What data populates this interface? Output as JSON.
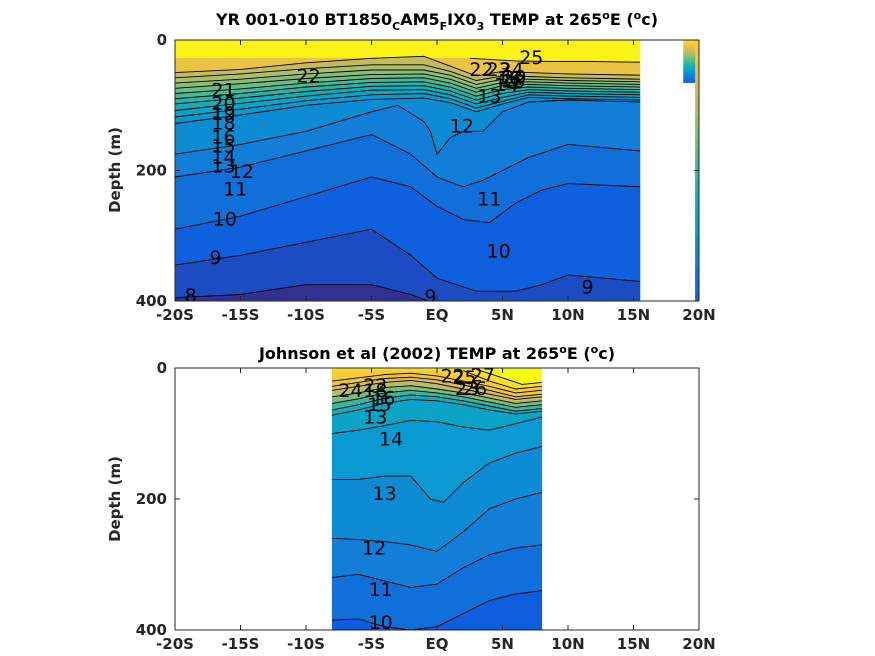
{
  "chart_data": [
    {
      "type": "heatmap",
      "subtype": "filled-contour",
      "title": {
        "parts": [
          {
            "t": "YR 001-010 BT1850"
          },
          {
            "t": "C",
            "sub": true
          },
          {
            "t": "AM5"
          },
          {
            "t": "F",
            "sub": true
          },
          {
            "t": "IX0"
          },
          {
            "t": "3",
            "sub": true
          },
          {
            "t": " TEMP at 265"
          },
          {
            "t": "o",
            "sup": true
          },
          {
            "t": "E ("
          },
          {
            "t": "o",
            "sup": true
          },
          {
            "t": "c)"
          }
        ]
      },
      "xlabel": "",
      "ylabel": "Depth (m)",
      "xlim": [
        -20,
        20
      ],
      "ylim": [
        0,
        400
      ],
      "y_reversed": true,
      "colormap": "parula",
      "color_range": [
        7,
        27
      ],
      "data_x_range": [
        -20,
        15.5
      ],
      "x_ticks": [
        -20,
        -15,
        -10,
        -5,
        0,
        5,
        10,
        15,
        20
      ],
      "x_tick_labels": [
        "-20S",
        "-15S",
        "-10S",
        "-5S",
        "EQ",
        "5N",
        "10N",
        "15N",
        "20N"
      ],
      "y_ticks": [
        0,
        200,
        400
      ],
      "y_tick_labels": [
        "0",
        "200",
        "400"
      ],
      "contours": [
        {
          "level": 25,
          "x": [
            2.5,
            6,
            9,
            12,
            15.5
          ],
          "y": [
            28,
            32,
            33,
            33,
            34
          ]
        },
        {
          "level": 22,
          "x": [
            -20,
            -15,
            -10,
            -5,
            -1,
            1,
            3,
            5,
            7,
            10,
            15.5
          ],
          "y": [
            50,
            45,
            35,
            28,
            25,
            40,
            55,
            48,
            50,
            52,
            54
          ]
        },
        {
          "level": 21,
          "x": [
            -20,
            -15,
            -10,
            -5,
            -1,
            1,
            3,
            5,
            7,
            10,
            15.5
          ],
          "y": [
            58,
            52,
            44,
            38,
            38,
            48,
            62,
            55,
            56,
            58,
            60
          ]
        },
        {
          "level": 20,
          "x": [
            -20,
            -15,
            -10,
            -5,
            -1,
            1,
            3,
            5,
            7,
            10,
            15.5
          ],
          "y": [
            66,
            60,
            52,
            46,
            46,
            54,
            68,
            60,
            60,
            62,
            64
          ]
        },
        {
          "level": 19,
          "x": [
            -20,
            -15,
            -10,
            -5,
            -1,
            1,
            3,
            5,
            7,
            10,
            15.5
          ],
          "y": [
            74,
            67,
            59,
            53,
            52,
            60,
            74,
            65,
            64,
            66,
            68
          ]
        },
        {
          "level": 18,
          "x": [
            -20,
            -15,
            -10,
            -5,
            -1,
            1,
            3,
            5,
            7,
            10,
            15.5
          ],
          "y": [
            82,
            75,
            66,
            59,
            58,
            66,
            80,
            70,
            68,
            70,
            72
          ]
        },
        {
          "level": 17,
          "x": [
            -20,
            -15,
            -10,
            -5,
            -1,
            1,
            3,
            5,
            7,
            10,
            15.5
          ],
          "y": [
            90,
            82,
            72,
            65,
            64,
            72,
            86,
            76,
            72,
            74,
            76
          ]
        },
        {
          "level": 16,
          "x": [
            -20,
            -15,
            -10,
            -5,
            -1,
            1,
            3,
            5,
            7,
            10,
            15.5
          ],
          "y": [
            98,
            89,
            79,
            71,
            70,
            78,
            92,
            82,
            76,
            78,
            80
          ]
        },
        {
          "level": 15,
          "x": [
            -20,
            -15,
            -10,
            -5,
            -1,
            1,
            3,
            5,
            7,
            10,
            15.5
          ],
          "y": [
            108,
            97,
            86,
            77,
            76,
            84,
            98,
            88,
            80,
            82,
            84
          ]
        },
        {
          "level": 14,
          "x": [
            -20,
            -15,
            -10,
            -5,
            -1,
            1,
            3,
            5,
            7,
            10,
            15.5
          ],
          "y": [
            118,
            106,
            93,
            84,
            82,
            90,
            104,
            94,
            84,
            86,
            88
          ]
        },
        {
          "level": 13,
          "x": [
            -20,
            -15,
            -10,
            -5,
            -1,
            1,
            3,
            5,
            7,
            10,
            15.5
          ],
          "y": [
            128,
            115,
            100,
            91,
            89,
            96,
            110,
            98,
            88,
            90,
            92
          ]
        },
        {
          "level": 12,
          "x": [
            -20,
            -15,
            -10,
            -5,
            -3,
            -1,
            -0.5,
            0,
            1,
            2,
            3.5,
            5,
            7,
            10,
            15.5
          ],
          "y": [
            175,
            160,
            140,
            110,
            100,
            125,
            140,
            175,
            150,
            140,
            140,
            110,
            95,
            92,
            95
          ]
        },
        {
          "level": 11,
          "x": [
            -20,
            -15,
            -10,
            -5,
            -2,
            0,
            2,
            3.5,
            5,
            7,
            10,
            15.5
          ],
          "y": [
            210,
            195,
            170,
            145,
            175,
            210,
            225,
            215,
            200,
            180,
            160,
            170
          ]
        },
        {
          "level": 10,
          "x": [
            -20,
            -15,
            -10,
            -5,
            -2,
            0,
            2,
            4,
            6,
            8,
            10,
            15.5
          ],
          "y": [
            290,
            270,
            240,
            210,
            225,
            255,
            275,
            280,
            250,
            230,
            220,
            225
          ]
        },
        {
          "level": 9,
          "x": [
            -20,
            -15,
            -10,
            -5,
            -2,
            0,
            3,
            6,
            8,
            10,
            15.5
          ],
          "y": [
            345,
            330,
            310,
            290,
            330,
            365,
            385,
            385,
            375,
            360,
            370
          ]
        },
        {
          "level": 8,
          "x": [
            -20,
            -15,
            -10,
            -5,
            -2,
            0
          ],
          "y": [
            395,
            390,
            375,
            375,
            390,
            405
          ]
        }
      ],
      "contour_labels": [
        {
          "text": "25",
          "x": 7.2,
          "y": 28
        },
        {
          "text": "22",
          "x": -9.8,
          "y": 57
        },
        {
          "text": "22",
          "x": 3.4,
          "y": 47
        },
        {
          "text": "23",
          "x": 4.7,
          "y": 47
        },
        {
          "text": "24",
          "x": 5.7,
          "y": 47
        },
        {
          "text": "16",
          "x": 5.5,
          "y": 60
        },
        {
          "text": "18",
          "x": 5.8,
          "y": 64
        },
        {
          "text": "20",
          "x": 5.9,
          "y": 58
        },
        {
          "text": "13",
          "x": 4.0,
          "y": 87
        },
        {
          "text": "14",
          "x": 5.3,
          "y": 70
        },
        {
          "text": "21",
          "x": -16.3,
          "y": 78
        },
        {
          "text": "20",
          "x": -16.3,
          "y": 99
        },
        {
          "text": "19",
          "x": -16.3,
          "y": 114
        },
        {
          "text": "18",
          "x": -16.3,
          "y": 129
        },
        {
          "text": "16",
          "x": -16.3,
          "y": 150
        },
        {
          "text": "15",
          "x": -16.3,
          "y": 164
        },
        {
          "text": "14",
          "x": -16.3,
          "y": 181
        },
        {
          "text": "13",
          "x": -16.3,
          "y": 195
        },
        {
          "text": "12",
          "x": -14.9,
          "y": 203
        },
        {
          "text": "11",
          "x": -15.4,
          "y": 230
        },
        {
          "text": "10",
          "x": -16.2,
          "y": 276
        },
        {
          "text": "9",
          "x": -16.9,
          "y": 335
        },
        {
          "text": "8",
          "x": -18.8,
          "y": 393
        },
        {
          "text": "12",
          "x": 1.9,
          "y": 133
        },
        {
          "text": "11",
          "x": 4.0,
          "y": 245
        },
        {
          "text": "10",
          "x": 4.7,
          "y": 325
        },
        {
          "text": "9",
          "x": -0.5,
          "y": 395
        },
        {
          "text": "9",
          "x": 11.5,
          "y": 380
        }
      ],
      "right_strip": {
        "x_range": [
          18.8,
          20
        ],
        "columns": [
          {
            "x": [
              18.8,
              20
            ],
            "depth_max": 65,
            "t_surface": 25.5
          },
          {
            "x": [
              19.7,
              20
            ],
            "depth_max": 400,
            "t_surface": 24.5
          }
        ]
      }
    },
    {
      "type": "heatmap",
      "subtype": "filled-contour",
      "title": {
        "parts": [
          {
            "t": "Johnson et al (2002) TEMP at 265"
          },
          {
            "t": "o",
            "sup": true
          },
          {
            "t": "E ("
          },
          {
            "t": "o",
            "sup": true
          },
          {
            "t": "c)"
          }
        ]
      },
      "xlabel": "",
      "ylabel": "Depth (m)",
      "xlim": [
        -20,
        20
      ],
      "ylim": [
        0,
        400
      ],
      "y_reversed": true,
      "colormap": "parula",
      "color_range": [
        7,
        27
      ],
      "data_x_range": [
        -8,
        8
      ],
      "x_ticks": [
        -20,
        -15,
        -10,
        -5,
        0,
        5,
        10,
        15,
        20
      ],
      "x_tick_labels": [
        "-20S",
        "-15S",
        "-10S",
        "-5S",
        "EQ",
        "5N",
        "10N",
        "15N",
        "20N"
      ],
      "y_ticks": [
        0,
        200,
        400
      ],
      "y_tick_labels": [
        "0",
        "200",
        "400"
      ],
      "contours": [
        {
          "level": 26,
          "x": [
            3,
            5,
            6.5,
            8
          ],
          "y": [
            2,
            15,
            25,
            22
          ]
        },
        {
          "level": 25,
          "x": [
            2,
            4,
            6,
            8
          ],
          "y": [
            4,
            20,
            32,
            28
          ]
        },
        {
          "level": 24,
          "x": [
            -8,
            -6,
            -4,
            -2,
            0,
            2,
            4,
            6,
            8
          ],
          "y": [
            20,
            15,
            10,
            8,
            12,
            20,
            28,
            38,
            34
          ]
        },
        {
          "level": 23,
          "x": [
            -8,
            -6,
            -4,
            -2,
            0,
            2,
            4,
            6,
            8
          ],
          "y": [
            28,
            22,
            16,
            14,
            18,
            26,
            34,
            44,
            40
          ]
        },
        {
          "level": 22,
          "x": [
            -8,
            -6,
            -4,
            -2,
            0,
            2,
            4,
            6,
            8
          ],
          "y": [
            34,
            28,
            22,
            19,
            24,
            32,
            40,
            48,
            44
          ]
        },
        {
          "level": 20,
          "x": [
            -8,
            -6,
            -4,
            -2,
            0,
            2,
            4,
            6,
            8
          ],
          "y": [
            44,
            38,
            30,
            27,
            32,
            38,
            46,
            54,
            50
          ]
        },
        {
          "level": 18,
          "x": [
            -8,
            -6,
            -4,
            -2,
            0,
            2,
            4,
            6,
            8
          ],
          "y": [
            54,
            47,
            38,
            34,
            38,
            44,
            52,
            60,
            56
          ]
        },
        {
          "level": 16,
          "x": [
            -8,
            -6,
            -4,
            -2,
            0,
            2,
            4,
            6,
            8
          ],
          "y": [
            64,
            56,
            46,
            41,
            44,
            50,
            58,
            66,
            62
          ]
        },
        {
          "level": 15,
          "x": [
            -8,
            -6,
            -4,
            -2,
            0,
            2,
            4,
            6,
            8
          ],
          "y": [
            72,
            64,
            54,
            48,
            50,
            56,
            64,
            70,
            66
          ]
        },
        {
          "level": 14,
          "x": [
            -8,
            -6,
            -4,
            -2,
            0,
            2,
            4,
            6,
            8
          ],
          "y": [
            100,
            95,
            88,
            80,
            82,
            90,
            95,
            85,
            75
          ]
        },
        {
          "level": 13,
          "x": [
            -8,
            -6,
            -4,
            -2,
            -0.5,
            0.5,
            2,
            4,
            6,
            8
          ],
          "y": [
            170,
            170,
            165,
            165,
            200,
            205,
            175,
            145,
            130,
            120
          ]
        },
        {
          "level": 12,
          "x": [
            -8,
            -6,
            -4,
            -2,
            0,
            2,
            4,
            6,
            8
          ],
          "y": [
            260,
            262,
            265,
            270,
            280,
            250,
            215,
            200,
            190
          ]
        },
        {
          "level": 11,
          "x": [
            -8,
            -6,
            -4,
            -2,
            0,
            2,
            4,
            6,
            8
          ],
          "y": [
            320,
            315,
            325,
            335,
            330,
            305,
            285,
            275,
            270
          ]
        },
        {
          "level": 10,
          "x": [
            -8,
            -6,
            -4,
            -2,
            0,
            2,
            4,
            6,
            8
          ],
          "y": [
            385,
            383,
            395,
            400,
            395,
            375,
            355,
            345,
            340
          ]
        }
      ],
      "contour_labels": [
        {
          "text": "24",
          "x": -6.6,
          "y": 36
        },
        {
          "text": "22",
          "x": -4.7,
          "y": 28
        },
        {
          "text": "18",
          "x": -4.7,
          "y": 36
        },
        {
          "text": "15",
          "x": -4.4,
          "y": 57
        },
        {
          "text": "13",
          "x": -4.7,
          "y": 76
        },
        {
          "text": "16",
          "x": -4.1,
          "y": 47
        },
        {
          "text": "14",
          "x": -3.5,
          "y": 110
        },
        {
          "text": "13",
          "x": -4.0,
          "y": 193
        },
        {
          "text": "12",
          "x": -4.8,
          "y": 276
        },
        {
          "text": "11",
          "x": -4.3,
          "y": 340
        },
        {
          "text": "10",
          "x": -4.3,
          "y": 390
        },
        {
          "text": "22",
          "x": 1.2,
          "y": 14
        },
        {
          "text": "25",
          "x": 2.1,
          "y": 16
        },
        {
          "text": "26",
          "x": 2.9,
          "y": 33
        },
        {
          "text": "27",
          "x": 3.5,
          "y": 12
        },
        {
          "text": "23",
          "x": 2.3,
          "y": 33
        }
      ]
    }
  ]
}
